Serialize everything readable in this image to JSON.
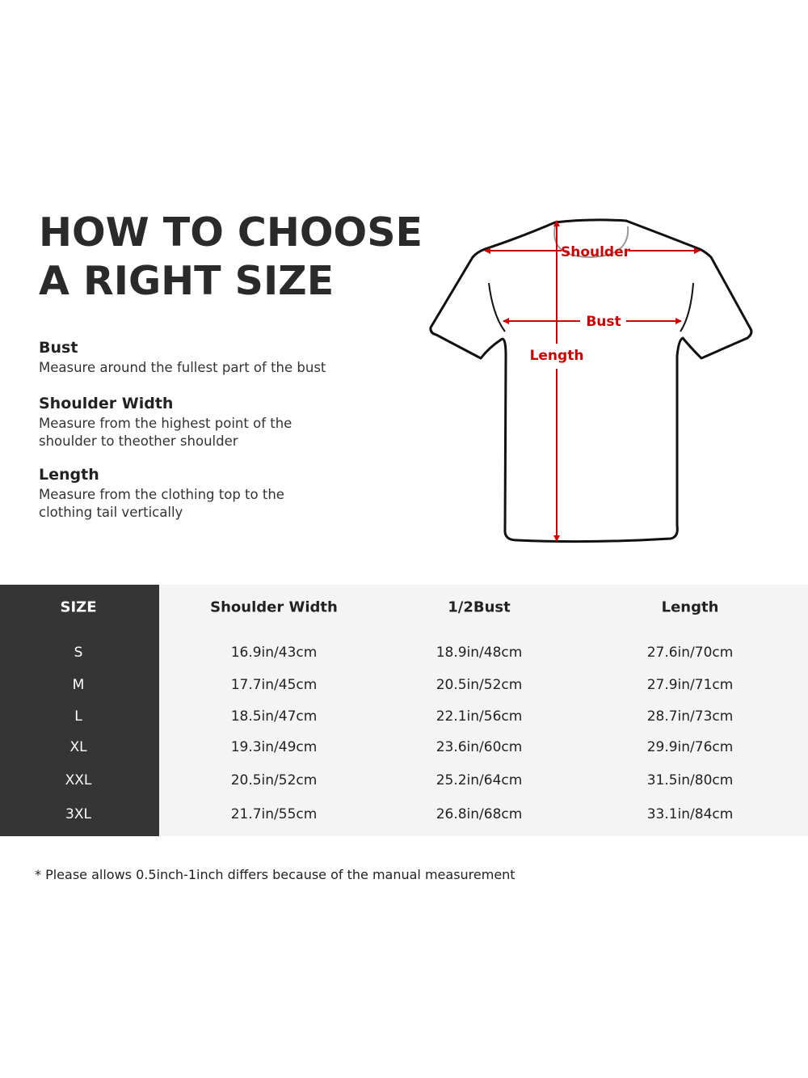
{
  "title": [
    "HOW TO CHOOSE",
    "A RIGHT SIZE"
  ],
  "guide": [
    {
      "heading": "Bust",
      "text": "Measure around the fullest part of the bust"
    },
    {
      "heading": "Shoulder Width",
      "text": "Measure from the highest point of the shoulder to theother shoulder"
    },
    {
      "heading": "Length",
      "text": "Measure from the clothing top to the clothing tail vertically"
    }
  ],
  "diagram": {
    "labels": {
      "shoulder": "Shoulder",
      "bust": "Bust",
      "length": "Length"
    },
    "arrow_color": "#cc0000"
  },
  "table": {
    "headers": [
      "SIZE",
      "Shoulder Width",
      "1/2Bust",
      "Length"
    ],
    "rows": [
      [
        "S",
        "16.9in/43cm",
        "18.9in/48cm",
        "27.6in/70cm"
      ],
      [
        "M",
        "17.7in/45cm",
        "20.5in/52cm",
        "27.9in/71cm"
      ],
      [
        "L",
        "18.5in/47cm",
        "22.1in/56cm",
        "28.7in/73cm"
      ],
      [
        "XL",
        "19.3in/49cm",
        "23.6in/60cm",
        "29.9in/76cm"
      ],
      [
        "XXL",
        "20.5in/52cm",
        "25.2in/64cm",
        "31.5in/80cm"
      ],
      [
        "3XL",
        "21.7in/55cm",
        "26.8in/68cm",
        "33.1in/84cm"
      ]
    ],
    "size_column_color": "#353535",
    "background_color": "#f4f4f4"
  },
  "note": "* Please allows 0.5inch-1inch differs because of the  manual measurement"
}
